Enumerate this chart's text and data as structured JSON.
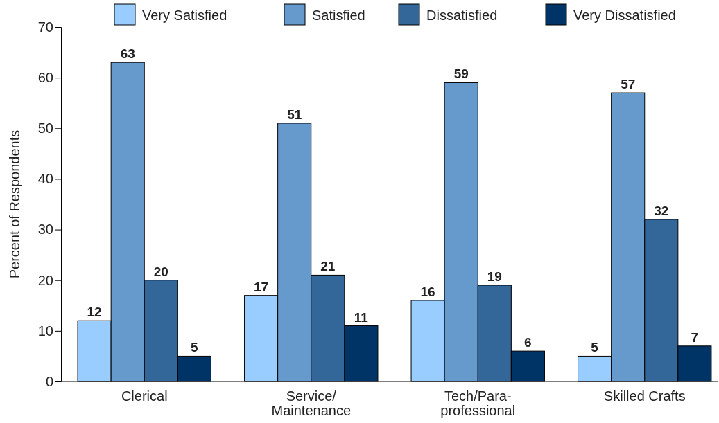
{
  "chart_data": {
    "type": "bar",
    "ylabel": "Percent of Respondents",
    "categories": [
      "Clerical",
      "Service/\nMaintenance",
      "Tech/Para-\nprofessional",
      "Skilled Crafts"
    ],
    "series": [
      {
        "name": "Very Satisfied",
        "color": "#99ccff",
        "values": [
          12,
          17,
          16,
          5
        ]
      },
      {
        "name": "Satisfied",
        "color": "#6699cc",
        "values": [
          63,
          51,
          59,
          57
        ]
      },
      {
        "name": "Dissatisfied",
        "color": "#336699",
        "values": [
          20,
          21,
          19,
          32
        ]
      },
      {
        "name": "Very Dissatisfied",
        "color": "#003366",
        "values": [
          5,
          11,
          6,
          7
        ]
      }
    ],
    "ylim": [
      0,
      70
    ],
    "yticks": [
      0,
      10,
      20,
      30,
      40,
      50,
      60,
      70
    ],
    "grid": false,
    "legend": "top",
    "data_labels": true
  }
}
